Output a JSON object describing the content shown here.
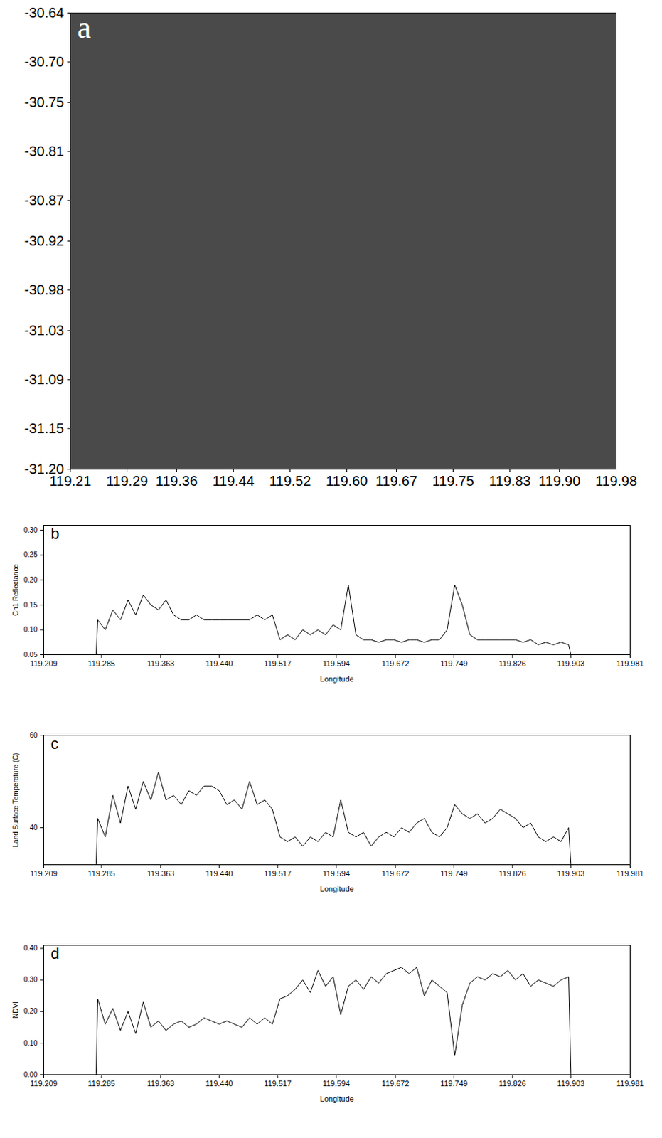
{
  "chart_data": [
    {
      "type": "image",
      "title": "a",
      "xlim": [
        119.21,
        119.98
      ],
      "xticks": [
        119.21,
        119.29,
        119.36,
        119.44,
        119.52,
        {
          "value": 119.6,
          "label": "119.60"
        },
        119.67,
        119.75,
        119.83,
        {
          "value": 119.9,
          "label": "119.90"
        },
        119.98
      ],
      "ylim": [
        -31.2,
        -30.64
      ],
      "yticks": [
        {
          "value": -31.2,
          "label": "-31.20"
        },
        -31.15,
        -31.09,
        -31.03,
        -30.98,
        -30.92,
        -30.87,
        -30.81,
        -30.75,
        {
          "value": -30.7,
          "label": "-30.70"
        },
        -30.64
      ],
      "grid": false
    },
    {
      "type": "line",
      "title": "b",
      "x_label": "Longitude",
      "y_label": "Ch1 Reflectance",
      "color": "#000000",
      "grid": false,
      "xlim": [
        119.209,
        119.981
      ],
      "xticks": [
        119.209,
        119.285,
        119.363,
        {
          "value": 119.44,
          "label": "119.440"
        },
        119.517,
        119.594,
        119.672,
        119.749,
        119.826,
        119.903,
        119.981
      ],
      "ylim": [
        0.05,
        0.31
      ],
      "yticks": [
        0.05,
        {
          "value": 0.1,
          "label": "0.10"
        },
        0.15,
        {
          "value": 0.2,
          "label": "0.20"
        },
        0.25,
        {
          "value": 0.3,
          "label": "0.30"
        }
      ],
      "x": [
        119.278,
        119.28,
        119.29,
        119.3,
        119.31,
        119.32,
        119.33,
        119.34,
        119.35,
        119.36,
        119.37,
        119.38,
        119.39,
        119.4,
        119.41,
        119.42,
        119.43,
        119.44,
        119.45,
        119.46,
        119.47,
        119.48,
        119.49,
        119.5,
        119.51,
        119.52,
        119.53,
        119.54,
        119.55,
        119.56,
        119.57,
        119.58,
        119.59,
        119.6,
        119.61,
        119.62,
        119.63,
        119.64,
        119.65,
        119.66,
        119.67,
        119.68,
        119.69,
        119.7,
        119.71,
        119.72,
        119.73,
        119.74,
        119.75,
        119.76,
        119.77,
        119.78,
        119.79,
        119.8,
        119.81,
        119.82,
        119.83,
        119.84,
        119.85,
        119.86,
        119.87,
        119.88,
        119.89,
        119.9,
        119.903
      ],
      "values": [
        0.05,
        0.12,
        0.1,
        0.14,
        0.12,
        0.16,
        0.13,
        0.17,
        0.15,
        0.14,
        0.16,
        0.13,
        0.12,
        0.12,
        0.13,
        0.12,
        0.12,
        0.12,
        0.12,
        0.12,
        0.12,
        0.12,
        0.13,
        0.12,
        0.13,
        0.08,
        0.09,
        0.08,
        0.1,
        0.09,
        0.1,
        0.09,
        0.11,
        0.1,
        0.19,
        0.09,
        0.08,
        0.08,
        0.075,
        0.08,
        0.08,
        0.075,
        0.08,
        0.08,
        0.075,
        0.08,
        0.08,
        0.1,
        0.19,
        0.15,
        0.09,
        0.08,
        0.08,
        0.08,
        0.08,
        0.08,
        0.08,
        0.075,
        0.08,
        0.07,
        0.075,
        0.07,
        0.075,
        0.07,
        0.05
      ]
    },
    {
      "type": "line",
      "title": "c",
      "x_label": "Longitude",
      "y_label": "Land Surface Temperature (C)",
      "color": "#000000",
      "grid": false,
      "xlim": [
        119.209,
        119.981
      ],
      "xticks": [
        119.209,
        119.285,
        119.363,
        {
          "value": 119.44,
          "label": "119.440"
        },
        119.517,
        119.594,
        119.672,
        119.749,
        119.826,
        119.903,
        119.981
      ],
      "ylim": [
        32,
        60
      ],
      "yticks": [
        40,
        60
      ],
      "x": [
        119.278,
        119.28,
        119.29,
        119.3,
        119.31,
        119.32,
        119.33,
        119.34,
        119.35,
        119.36,
        119.37,
        119.38,
        119.39,
        119.4,
        119.41,
        119.42,
        119.43,
        119.44,
        119.45,
        119.46,
        119.47,
        119.48,
        119.49,
        119.5,
        119.51,
        119.52,
        119.53,
        119.54,
        119.55,
        119.56,
        119.57,
        119.58,
        119.59,
        119.6,
        119.61,
        119.62,
        119.63,
        119.64,
        119.65,
        119.66,
        119.67,
        119.68,
        119.69,
        119.7,
        119.71,
        119.72,
        119.73,
        119.74,
        119.75,
        119.76,
        119.77,
        119.78,
        119.79,
        119.8,
        119.81,
        119.82,
        119.83,
        119.84,
        119.85,
        119.86,
        119.87,
        119.88,
        119.89,
        119.9,
        119.903
      ],
      "values": [
        32,
        42,
        38,
        47,
        41,
        49,
        44,
        50,
        46,
        52,
        46,
        47,
        45,
        48,
        47,
        49,
        49,
        48,
        45,
        46,
        44,
        50,
        45,
        46,
        44,
        38,
        37,
        38,
        36,
        38,
        37,
        39,
        38,
        46,
        39,
        38,
        39,
        36,
        38,
        39,
        38,
        40,
        39,
        41,
        42,
        39,
        38,
        40,
        45,
        43,
        42,
        43,
        41,
        42,
        44,
        43,
        42,
        40,
        41,
        38,
        37,
        38,
        37,
        40,
        32
      ]
    },
    {
      "type": "line",
      "title": "d",
      "x_label": "Longitude",
      "y_label": "NDVI",
      "color": "#000000",
      "grid": false,
      "xlim": [
        119.209,
        119.981
      ],
      "xticks": [
        119.209,
        119.285,
        119.363,
        {
          "value": 119.44,
          "label": "119.440"
        },
        119.517,
        119.594,
        119.672,
        119.749,
        119.826,
        119.903,
        119.981
      ],
      "ylim": [
        0,
        0.41
      ],
      "yticks": [
        {
          "value": 0,
          "label": "0.00"
        },
        {
          "value": 0.1,
          "label": "0.10"
        },
        {
          "value": 0.2,
          "label": "0.20"
        },
        {
          "value": 0.3,
          "label": "0.30"
        },
        {
          "value": 0.4,
          "label": "0.40"
        }
      ],
      "x": [
        119.278,
        119.28,
        119.29,
        119.3,
        119.31,
        119.32,
        119.33,
        119.34,
        119.35,
        119.36,
        119.37,
        119.38,
        119.39,
        119.4,
        119.41,
        119.42,
        119.43,
        119.44,
        119.45,
        119.46,
        119.47,
        119.48,
        119.49,
        119.5,
        119.51,
        119.52,
        119.53,
        119.54,
        119.55,
        119.56,
        119.57,
        119.58,
        119.59,
        119.6,
        119.61,
        119.62,
        119.63,
        119.64,
        119.65,
        119.66,
        119.67,
        119.68,
        119.69,
        119.7,
        119.71,
        119.72,
        119.73,
        119.74,
        119.75,
        119.76,
        119.77,
        119.78,
        119.79,
        119.8,
        119.81,
        119.82,
        119.83,
        119.84,
        119.85,
        119.86,
        119.87,
        119.88,
        119.89,
        119.9,
        119.903
      ],
      "values": [
        0,
        0.24,
        0.16,
        0.21,
        0.14,
        0.2,
        0.13,
        0.23,
        0.15,
        0.17,
        0.14,
        0.16,
        0.17,
        0.15,
        0.16,
        0.18,
        0.17,
        0.16,
        0.17,
        0.16,
        0.15,
        0.18,
        0.16,
        0.18,
        0.16,
        0.24,
        0.25,
        0.27,
        0.3,
        0.26,
        0.33,
        0.28,
        0.31,
        0.19,
        0.28,
        0.3,
        0.27,
        0.31,
        0.29,
        0.32,
        0.33,
        0.34,
        0.32,
        0.34,
        0.25,
        0.3,
        0.28,
        0.26,
        0.06,
        0.22,
        0.29,
        0.31,
        0.3,
        0.32,
        0.31,
        0.33,
        0.3,
        0.32,
        0.28,
        0.3,
        0.29,
        0.28,
        0.3,
        0.31,
        0
      ]
    }
  ]
}
